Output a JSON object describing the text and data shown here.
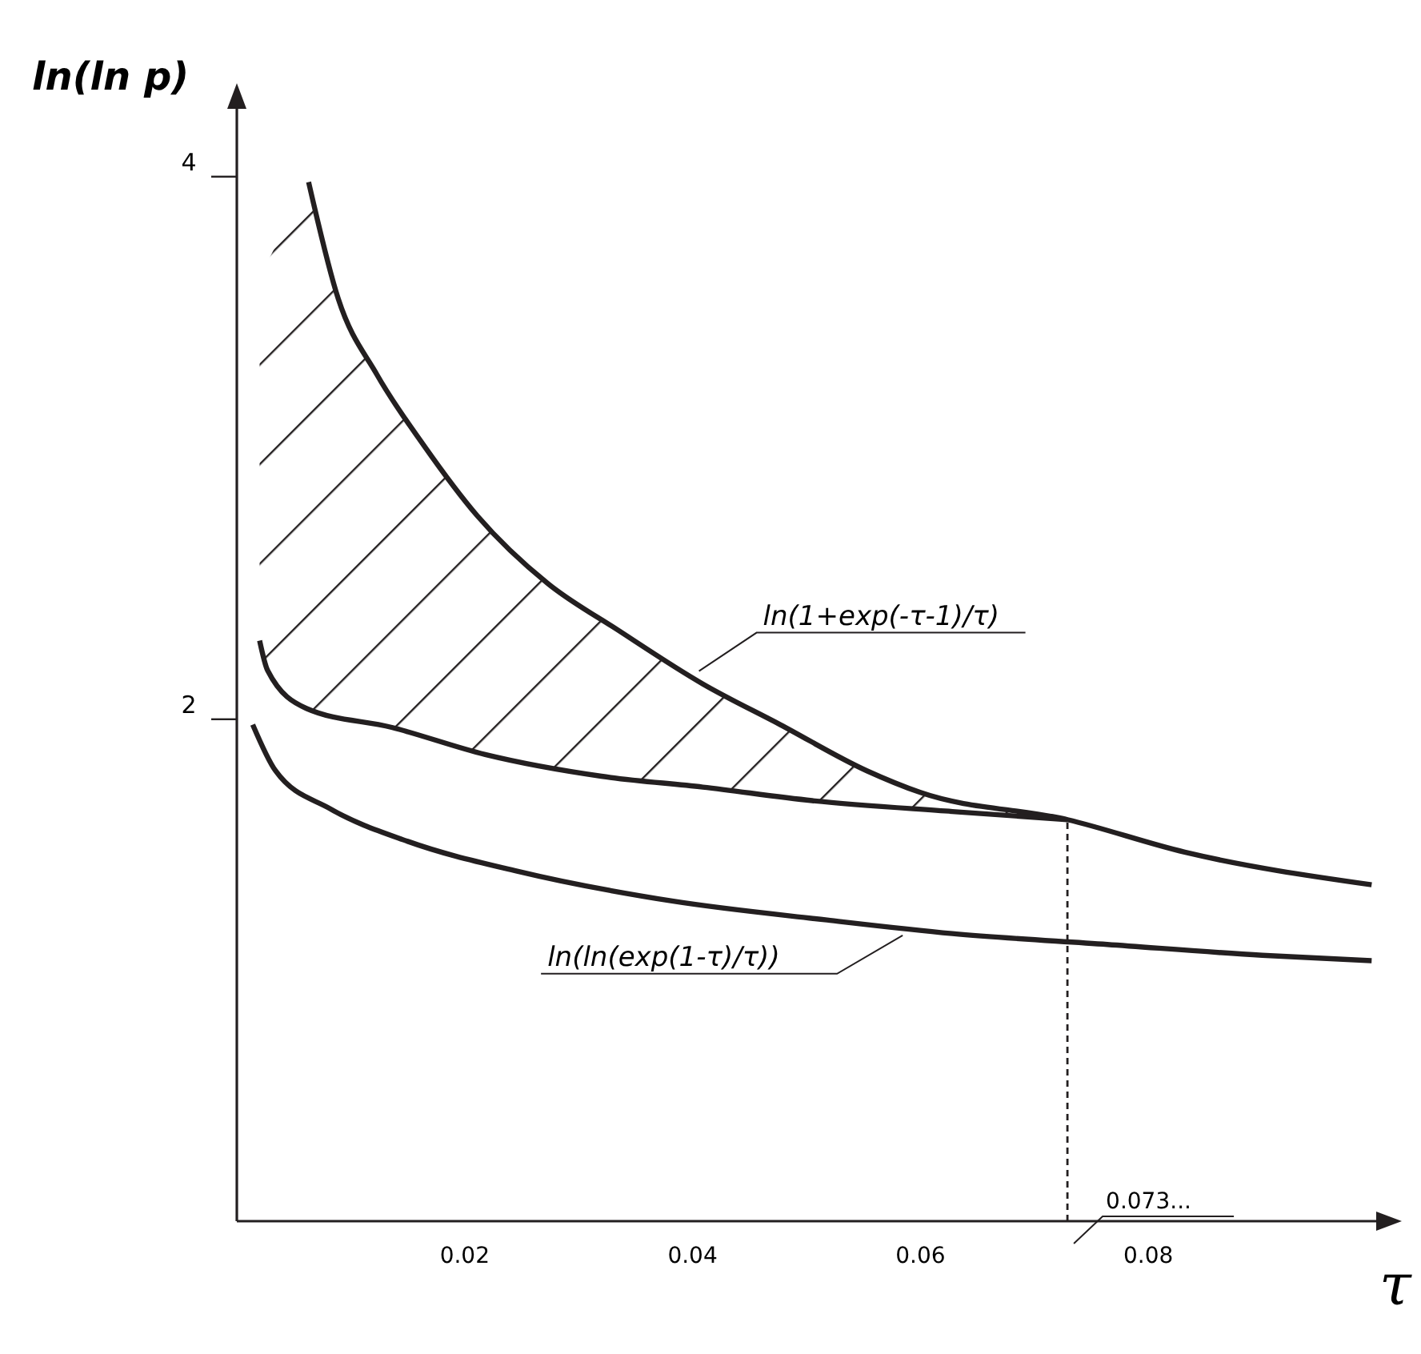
{
  "chart_data": {
    "type": "line",
    "xlabel": "τ",
    "ylabel": "ln(ln p)",
    "xlim": [
      0,
      0.1
    ],
    "ylim": [
      0.15,
      4.25
    ],
    "xticks": [
      0.02,
      0.04,
      0.06,
      0.08
    ],
    "yticks": [
      2,
      4
    ],
    "grid": false,
    "line_style": "solid",
    "series": [
      {
        "name": "ln(1+exp(-τ-1)/τ)",
        "color": "#231f20",
        "x": [
          0.0063,
          0.0089,
          0.0123,
          0.0164,
          0.0211,
          0.0273,
          0.0334,
          0.0409,
          0.0477,
          0.0553,
          0.06,
          0.0729,
          0.0832,
          0.0996
        ],
        "values": [
          3.98,
          3.55,
          3.27,
          3.01,
          2.75,
          2.5,
          2.33,
          2.13,
          1.98,
          1.81,
          1.73,
          1.63,
          1.51,
          1.39
        ]
      },
      {
        "color": "#231f20",
        "x": [
          0.002,
          0.0027,
          0.0061,
          0.0136,
          0.0218,
          0.032,
          0.0409,
          0.0505,
          0.0628,
          0.0729
        ],
        "values": [
          2.29,
          2.18,
          2.04,
          1.97,
          1.87,
          1.79,
          1.75,
          1.7,
          1.66,
          1.63
        ]
      },
      {
        "name": "ln(ln(exp(1-τ)/τ))",
        "color": "#231f20",
        "x": [
          0.0014,
          0.0034,
          0.0082,
          0.015,
          0.0246,
          0.0382,
          0.0518,
          0.0628,
          0.0764,
          0.09,
          0.0996
        ],
        "values": [
          1.98,
          1.81,
          1.67,
          1.55,
          1.44,
          1.33,
          1.26,
          1.21,
          1.17,
          1.13,
          1.11
        ]
      }
    ],
    "ref_lines": [
      {
        "axis": "x",
        "value": 0.0729,
        "label": "0.073...",
        "line_style": "dashed",
        "color": "#231f20"
      }
    ]
  }
}
